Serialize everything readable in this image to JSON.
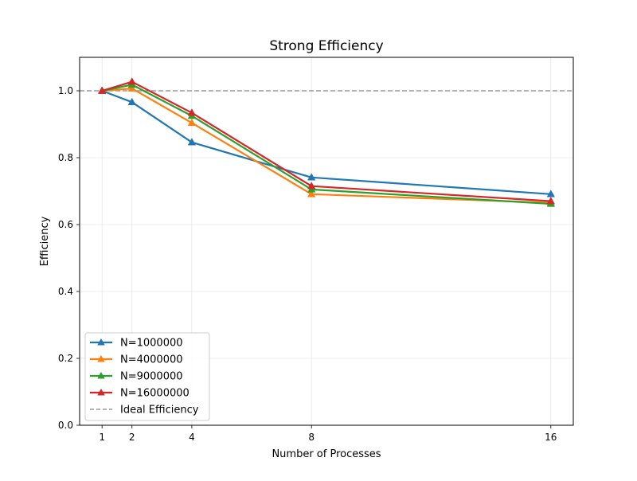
{
  "chart_data": {
    "type": "line",
    "title": "Strong Efficiency",
    "xlabel": "Number of Processes",
    "ylabel": "Efficiency",
    "x": [
      1,
      2,
      4,
      8,
      16
    ],
    "xticks": [
      1,
      2,
      4,
      8,
      16
    ],
    "yticks": [
      0.0,
      0.2,
      0.4,
      0.6,
      0.8,
      1.0
    ],
    "ytick_labels": [
      "0.0",
      "0.2",
      "0.4",
      "0.6",
      "0.8",
      "1.0"
    ],
    "xlim": [
      0.25,
      16.75
    ],
    "ylim": [
      0.0,
      1.1
    ],
    "grid": true,
    "legend_position": "lower-left",
    "series": [
      {
        "name": "N=1000000",
        "color": "#1f77b4",
        "marker": "triangle",
        "values": [
          1.0,
          0.966,
          0.846,
          0.741,
          0.691
        ]
      },
      {
        "name": "N=4000000",
        "color": "#ff7f0e",
        "marker": "triangle",
        "values": [
          1.0,
          1.007,
          0.904,
          0.691,
          0.665
        ]
      },
      {
        "name": "N=9000000",
        "color": "#2ca02c",
        "marker": "triangle",
        "values": [
          1.0,
          1.018,
          0.925,
          0.705,
          0.662
        ]
      },
      {
        "name": "N=16000000",
        "color": "#d62728",
        "marker": "triangle",
        "values": [
          1.0,
          1.027,
          0.934,
          0.715,
          0.67
        ]
      }
    ],
    "reference_line": {
      "name": "Ideal Efficiency",
      "y": 1.0,
      "color": "#999999",
      "style": "dashed"
    }
  }
}
